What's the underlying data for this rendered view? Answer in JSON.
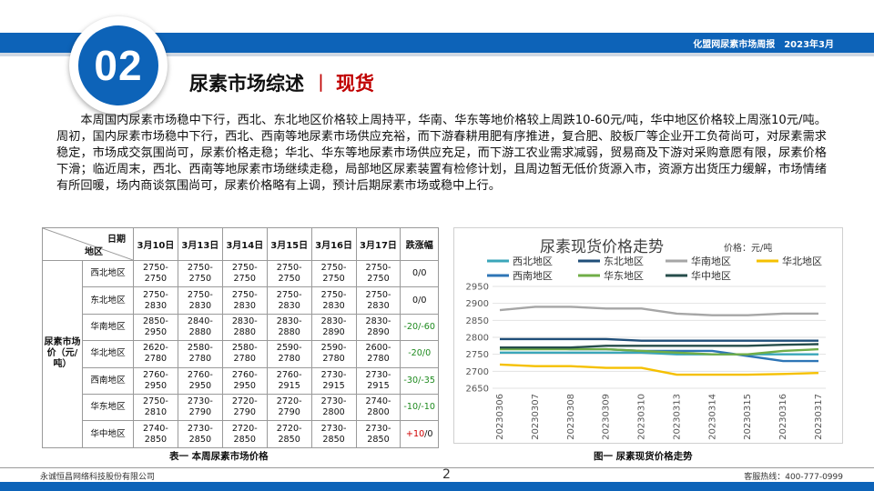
{
  "header": {
    "right_title": "化盟网尿素市场周报",
    "right_date": "2023年3月",
    "section_number": "02",
    "section_title": "尿素市场综述",
    "section_separator": "丨",
    "section_subtitle": "现货"
  },
  "intro_text": "本周国内尿素市场稳中下行，西北、东北地区价格较上周持平，华南、华东等地价格较上周跌10-60元/吨，华中地区价格较上周涨10元/吨。周初，国内尿素市场稳中下行，西北、西南等地尿素市场供应充裕，而下游春耕用肥有序推进，复合肥、胶板厂等企业开工负荷尚可，对尿素需求稳定，市场成交氛围尚可，尿素价格走稳；华北、华东等地尿素市场供应充足，而下游工农业需求减弱，贸易商及下游对采购意愿有限，尿素价格下滑；临近周末，西北、西南等地尿素市场继续走稳，局部地区尿素装置有检修计划，且周边暂无低价货源入市，资源方出货压力缓解，市场情绪有所回暖，场内商谈氛围尚可，尿素价格略有上调，预计后期尿素市场或稳中上行。",
  "table": {
    "corner_top": "日期",
    "corner_bottom": "地区",
    "row_header": "尿素市场价（元/吨）",
    "dates": [
      "3月10日",
      "3月13日",
      "3月14日",
      "3月15日",
      "3月16日",
      "3月17日"
    ],
    "change_header": "跌涨幅",
    "rows": [
      {
        "region": "西北地区",
        "prices": [
          "2750-2750",
          "2750-2750",
          "2750-2750",
          "2750-2750",
          "2750-2750",
          "2750-2750"
        ],
        "change_a": "0",
        "change_b": "0",
        "trend": "flat"
      },
      {
        "region": "东北地区",
        "prices": [
          "2750-2830",
          "2750-2830",
          "2750-2830",
          "2750-2830",
          "2750-2830",
          "2750-2830"
        ],
        "change_a": "0",
        "change_b": "0",
        "trend": "flat"
      },
      {
        "region": "华南地区",
        "prices": [
          "2850-2950",
          "2840-2880",
          "2830-2880",
          "2830-2880",
          "2830-2890",
          "2830-2890"
        ],
        "change_a": "-20",
        "change_b": "-60",
        "trend": "down"
      },
      {
        "region": "华北地区",
        "prices": [
          "2620-2780",
          "2580-2780",
          "2580-2780",
          "2590-2780",
          "2590-2780",
          "2600-2780"
        ],
        "change_a": "-20",
        "change_b": "0",
        "trend": "down"
      },
      {
        "region": "西南地区",
        "prices": [
          "2760-2950",
          "2760-2950",
          "2760-2950",
          "2760-2915",
          "2730-2915",
          "2730-2915"
        ],
        "change_a": "-30",
        "change_b": "-35",
        "trend": "down"
      },
      {
        "region": "华东地区",
        "prices": [
          "2750-2810",
          "2730-2790",
          "2720-2790",
          "2720-2790",
          "2730-2800",
          "2740-2800"
        ],
        "change_a": "-10",
        "change_b": "-10",
        "trend": "down"
      },
      {
        "region": "华中地区",
        "prices": [
          "2740-2850",
          "2730-2850",
          "2720-2850",
          "2720-2850",
          "2730-2850",
          "2730-2850"
        ],
        "change_a": "+10",
        "change_b": "0",
        "trend": "up"
      }
    ],
    "caption": "表一  本周尿素市场价格"
  },
  "chart_caption": "图一  尿素现货价格走势",
  "chart_data": {
    "type": "line",
    "title": "尿素现货价格走势",
    "unit_label": "价格：元/吨",
    "x": [
      "20230306",
      "20230307",
      "20230308",
      "20230309",
      "20230310",
      "20230313",
      "20230314",
      "20230315",
      "20230316",
      "20230317"
    ],
    "ylim": [
      2650,
      2950
    ],
    "yticks": [
      2650,
      2700,
      2750,
      2800,
      2850,
      2900,
      2950
    ],
    "legend_position": "top",
    "series": [
      {
        "name": "西北地区",
        "color": "#3aa6b9",
        "values": [
          2755,
          2755,
          2755,
          2755,
          2755,
          2750,
          2750,
          2750,
          2750,
          2750
        ]
      },
      {
        "name": "东北地区",
        "color": "#1f4e79",
        "values": [
          2795,
          2795,
          2795,
          2795,
          2790,
          2790,
          2790,
          2790,
          2790,
          2790
        ]
      },
      {
        "name": "华南地区",
        "color": "#a6a6a6",
        "values": [
          2880,
          2890,
          2890,
          2885,
          2885,
          2870,
          2865,
          2865,
          2870,
          2870
        ]
      },
      {
        "name": "华北地区",
        "color": "#f5c000",
        "values": [
          2720,
          2715,
          2715,
          2710,
          2710,
          2690,
          2690,
          2690,
          2692,
          2695
        ]
      },
      {
        "name": "西南地区",
        "color": "#2e75b6",
        "values": [
          2770,
          2770,
          2765,
          2765,
          2760,
          2760,
          2760,
          2745,
          2730,
          2730
        ]
      },
      {
        "name": "华东地区",
        "color": "#70ad47",
        "values": [
          2765,
          2765,
          2765,
          2765,
          2760,
          2755,
          2750,
          2750,
          2760,
          2765
        ]
      },
      {
        "name": "华中地区",
        "color": "#264d4b",
        "values": [
          2770,
          2770,
          2770,
          2775,
          2775,
          2775,
          2775,
          2775,
          2778,
          2780
        ]
      }
    ]
  },
  "footer": {
    "company": "永诚恒昌网络科技股份有限公司",
    "page": "2",
    "hotline": "客服热线：400-777-0999"
  }
}
